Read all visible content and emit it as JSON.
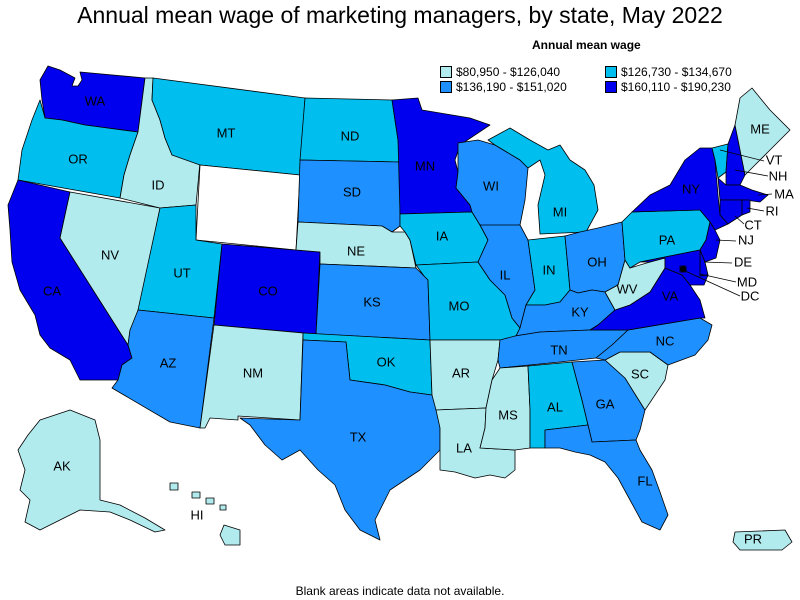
{
  "title": "Annual mean wage of marketing managers, by state, May 2022",
  "legend": {
    "title": "Annual mean wage",
    "items": [
      {
        "label": "$80,950 - $126,040",
        "color": "#b2ebee"
      },
      {
        "label": "$126,730 - $134,670",
        "color": "#00bfef"
      },
      {
        "label": "$136,190 - $151,020",
        "color": "#1e90ff"
      },
      {
        "label": "$160,110 - $190,230",
        "color": "#0000ee"
      }
    ]
  },
  "colors": {
    "no_data": "#ffffff"
  },
  "states": {
    "WA": {
      "label": "WA",
      "bin": 3
    },
    "OR": {
      "label": "OR",
      "bin": 1
    },
    "CA": {
      "label": "CA",
      "bin": 3
    },
    "NV": {
      "label": "NV",
      "bin": 0
    },
    "ID": {
      "label": "ID",
      "bin": 0
    },
    "MT": {
      "label": "MT",
      "bin": 1
    },
    "WY": {
      "label": "",
      "bin": -1
    },
    "UT": {
      "label": "UT",
      "bin": 1
    },
    "AZ": {
      "label": "AZ",
      "bin": 2
    },
    "CO": {
      "label": "CO",
      "bin": 3
    },
    "NM": {
      "label": "NM",
      "bin": 0
    },
    "ND": {
      "label": "ND",
      "bin": 1
    },
    "SD": {
      "label": "SD",
      "bin": 2
    },
    "NE": {
      "label": "NE",
      "bin": 0
    },
    "KS": {
      "label": "KS",
      "bin": 2
    },
    "OK": {
      "label": "OK",
      "bin": 1
    },
    "TX": {
      "label": "TX",
      "bin": 2
    },
    "MN": {
      "label": "MN",
      "bin": 3
    },
    "IA": {
      "label": "IA",
      "bin": 1
    },
    "MO": {
      "label": "MO",
      "bin": 1
    },
    "AR": {
      "label": "AR",
      "bin": 0
    },
    "LA": {
      "label": "LA",
      "bin": 0
    },
    "WI": {
      "label": "WI",
      "bin": 2
    },
    "IL": {
      "label": "IL",
      "bin": 2
    },
    "MI": {
      "label": "MI",
      "bin": 1
    },
    "IN": {
      "label": "IN",
      "bin": 1
    },
    "OH": {
      "label": "OH",
      "bin": 2
    },
    "KY": {
      "label": "KY",
      "bin": 2
    },
    "TN": {
      "label": "TN",
      "bin": 2
    },
    "MS": {
      "label": "MS",
      "bin": 0
    },
    "AL": {
      "label": "AL",
      "bin": 1
    },
    "GA": {
      "label": "GA",
      "bin": 2
    },
    "FL": {
      "label": "FL",
      "bin": 2
    },
    "SC": {
      "label": "SC",
      "bin": 0
    },
    "NC": {
      "label": "NC",
      "bin": 2
    },
    "VA": {
      "label": "VA",
      "bin": 3
    },
    "WV": {
      "label": "WV",
      "bin": 0
    },
    "PA": {
      "label": "PA",
      "bin": 1
    },
    "NY": {
      "label": "NY",
      "bin": 3
    },
    "ME": {
      "label": "ME",
      "bin": 0
    },
    "VT": {
      "label": "VT",
      "bin": 1
    },
    "NH": {
      "label": "NH",
      "bin": 3
    },
    "MA": {
      "label": "MA",
      "bin": 3
    },
    "RI": {
      "label": "RI",
      "bin": 3
    },
    "CT": {
      "label": "CT",
      "bin": 3
    },
    "NJ": {
      "label": "NJ",
      "bin": 3
    },
    "DE": {
      "label": "DE",
      "bin": 3
    },
    "MD": {
      "label": "MD",
      "bin": 3
    },
    "DC": {
      "label": "DC",
      "bin": 3
    },
    "AK": {
      "label": "AK",
      "bin": 0
    },
    "HI": {
      "label": "HI",
      "bin": 0
    },
    "PR": {
      "label": "PR",
      "bin": 0
    }
  },
  "footnote": "Blank areas indicate data not available."
}
